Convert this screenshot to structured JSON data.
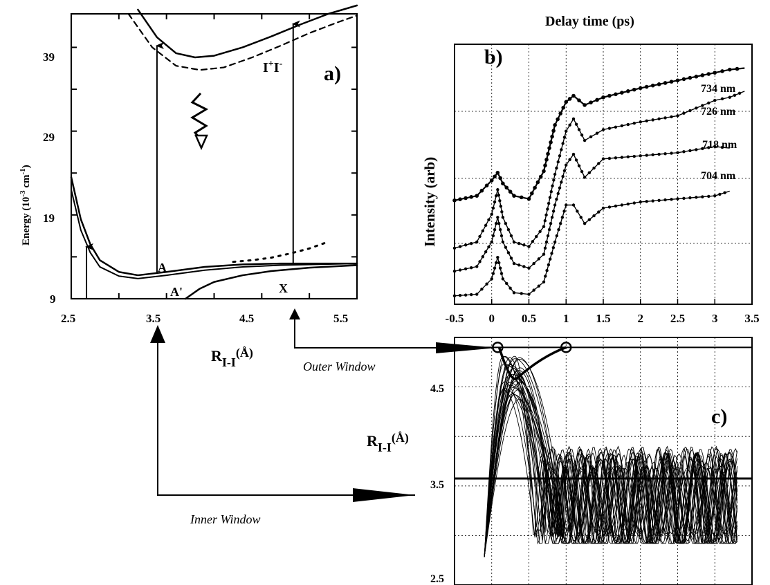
{
  "chart_data": [
    {
      "panel": "a",
      "type": "line",
      "panel_label": "a)",
      "ylabel_main": "Energy (10",
      "ylabel_sup1": "-3",
      "ylabel_mid": " cm",
      "ylabel_sup2": "-1",
      "ylabel_end": ")",
      "xlabel_main": "R",
      "xlabel_sub": "I-I",
      "xlabel_end": "(Å)",
      "xlim": [
        2.5,
        5.5
      ],
      "ylim": [
        9,
        43
      ],
      "x_ticks": [
        "2.5",
        "3.5",
        "4.5",
        "5.5"
      ],
      "y_ticks": [
        "9",
        "19",
        "29",
        "39"
      ],
      "state_labels": {
        "ion_pair_main": "I",
        "ion_pair_sup1": "+",
        "ion_pair_mid": "I",
        "ion_pair_sup2": "-",
        "A": "A",
        "A_prime": "A'",
        "X": "X"
      },
      "series": [
        {
          "x": [
            2.5,
            2.6,
            2.7,
            2.8,
            3.0,
            3.2,
            3.5,
            3.9,
            4.3,
            4.7,
            5.5
          ],
          "y": [
            23.5,
            18.5,
            15.5,
            13.6,
            12.2,
            11.8,
            12.2,
            12.8,
            13.1,
            13.2,
            13.2
          ]
        },
        {
          "x": [
            2.5,
            2.6,
            2.7,
            2.8,
            3.0,
            3.2,
            3.5,
            3.9,
            4.3,
            4.7,
            5.5
          ],
          "y": [
            22.0,
            17.2,
            14.5,
            12.8,
            11.7,
            11.4,
            11.8,
            12.4,
            12.8,
            13.0,
            13.2
          ]
        },
        {
          "x": [
            3.7,
            3.85,
            4.0,
            4.3,
            4.6,
            5.0,
            5.5
          ],
          "y": [
            9.0,
            10.2,
            11.0,
            11.8,
            12.3,
            12.7,
            13.0
          ]
        },
        {
          "x": [
            3.2,
            3.4,
            3.6,
            3.8,
            4.0,
            4.3,
            4.6,
            4.9,
            5.2,
            5.5
          ],
          "y": [
            43.5,
            40.2,
            38.3,
            37.8,
            38.0,
            39.0,
            40.3,
            41.7,
            43.0,
            44.0
          ]
        },
        {
          "x": [
            3.1,
            3.35,
            3.6,
            3.85,
            4.1,
            4.4,
            4.7,
            5.0,
            5.3,
            5.5
          ],
          "y": [
            43.0,
            39.0,
            36.8,
            36.3,
            36.6,
            37.8,
            39.2,
            40.7,
            42.0,
            42.8
          ]
        },
        {
          "x": [
            4.2,
            4.4,
            4.6,
            4.8,
            5.0,
            5.2
          ],
          "y": [
            13.4,
            13.6,
            13.9,
            14.4,
            15.0,
            15.8
          ]
        }
      ],
      "excitation_arrows": [
        {
          "x": 2.66,
          "y_from": 9,
          "y_to": 15.2
        },
        {
          "x": 3.4,
          "y_from": 12.0,
          "y_to": 39.2
        },
        {
          "x": 4.83,
          "y_from": 13.2,
          "y_to": 41.8
        }
      ]
    },
    {
      "panel": "b",
      "type": "line",
      "panel_label": "b)",
      "title": "Delay time (ps)",
      "ylabel": "Intensity (arb)",
      "xlim": [
        -0.5,
        3.5
      ],
      "x_ticks": [
        "-0.5",
        "0",
        "0.5",
        "1",
        "1.5",
        "2",
        "2.5",
        "3",
        "3.5"
      ],
      "grid": true,
      "series": [
        {
          "name": "734 nm",
          "x": [
            -0.5,
            -0.2,
            0.0,
            0.08,
            0.15,
            0.3,
            0.5,
            0.7,
            0.85,
            1.0,
            1.1,
            1.25,
            1.5,
            2.0,
            2.5,
            3.0,
            3.2,
            3.4
          ],
          "y": [
            3.15,
            3.3,
            3.8,
            4.05,
            3.7,
            3.3,
            3.2,
            4.1,
            5.6,
            6.35,
            6.55,
            6.25,
            6.5,
            6.8,
            7.05,
            7.3,
            7.4,
            7.45
          ]
        },
        {
          "name": "726 nm",
          "x": [
            -0.5,
            -0.2,
            0.0,
            0.08,
            0.15,
            0.3,
            0.5,
            0.7,
            0.85,
            1.0,
            1.1,
            1.25,
            1.5,
            2.0,
            2.5,
            3.0,
            3.2,
            3.4
          ],
          "y": [
            1.6,
            1.8,
            2.7,
            3.5,
            2.6,
            1.8,
            1.65,
            2.3,
            4.0,
            5.4,
            5.8,
            5.1,
            5.45,
            5.7,
            5.9,
            6.4,
            6.5,
            6.7
          ]
        },
        {
          "name": "718 nm",
          "x": [
            -0.5,
            -0.2,
            0.0,
            0.08,
            0.15,
            0.3,
            0.5,
            0.7,
            0.85,
            1.0,
            1.1,
            1.25,
            1.5,
            2.0,
            2.5,
            3.0,
            3.2
          ],
          "y": [
            0.85,
            1.0,
            1.8,
            2.6,
            1.8,
            1.1,
            0.95,
            1.4,
            3.0,
            4.3,
            4.65,
            3.9,
            4.5,
            4.6,
            4.7,
            4.9,
            4.85
          ]
        },
        {
          "name": "704 nm",
          "x": [
            -0.5,
            -0.2,
            0.0,
            0.08,
            0.15,
            0.3,
            0.5,
            0.7,
            0.85,
            1.0,
            1.1,
            1.25,
            1.5,
            2.0,
            2.5,
            3.0,
            3.2
          ],
          "y": [
            0.05,
            0.1,
            0.6,
            1.3,
            0.6,
            0.15,
            0.1,
            0.5,
            1.8,
            3.0,
            3.0,
            2.4,
            2.9,
            3.1,
            3.2,
            3.3,
            3.45
          ]
        }
      ]
    },
    {
      "panel": "c",
      "type": "line",
      "panel_label": "c)",
      "ylabel_main": "R",
      "ylabel_sub": "I-I",
      "ylabel_end": "(Å)",
      "xlim": [
        -0.5,
        3.5
      ],
      "ylim": [
        2.5,
        5.0
      ],
      "y_ticks": [
        "2.5",
        "3.5",
        "4.5"
      ],
      "grid": true,
      "inner_window_R": 3.35,
      "outer_window_R": 4.9,
      "annotation_labels": {
        "outer": "Outer Window",
        "inner": "Inner Window"
      },
      "trajectory_count": 30
    }
  ]
}
